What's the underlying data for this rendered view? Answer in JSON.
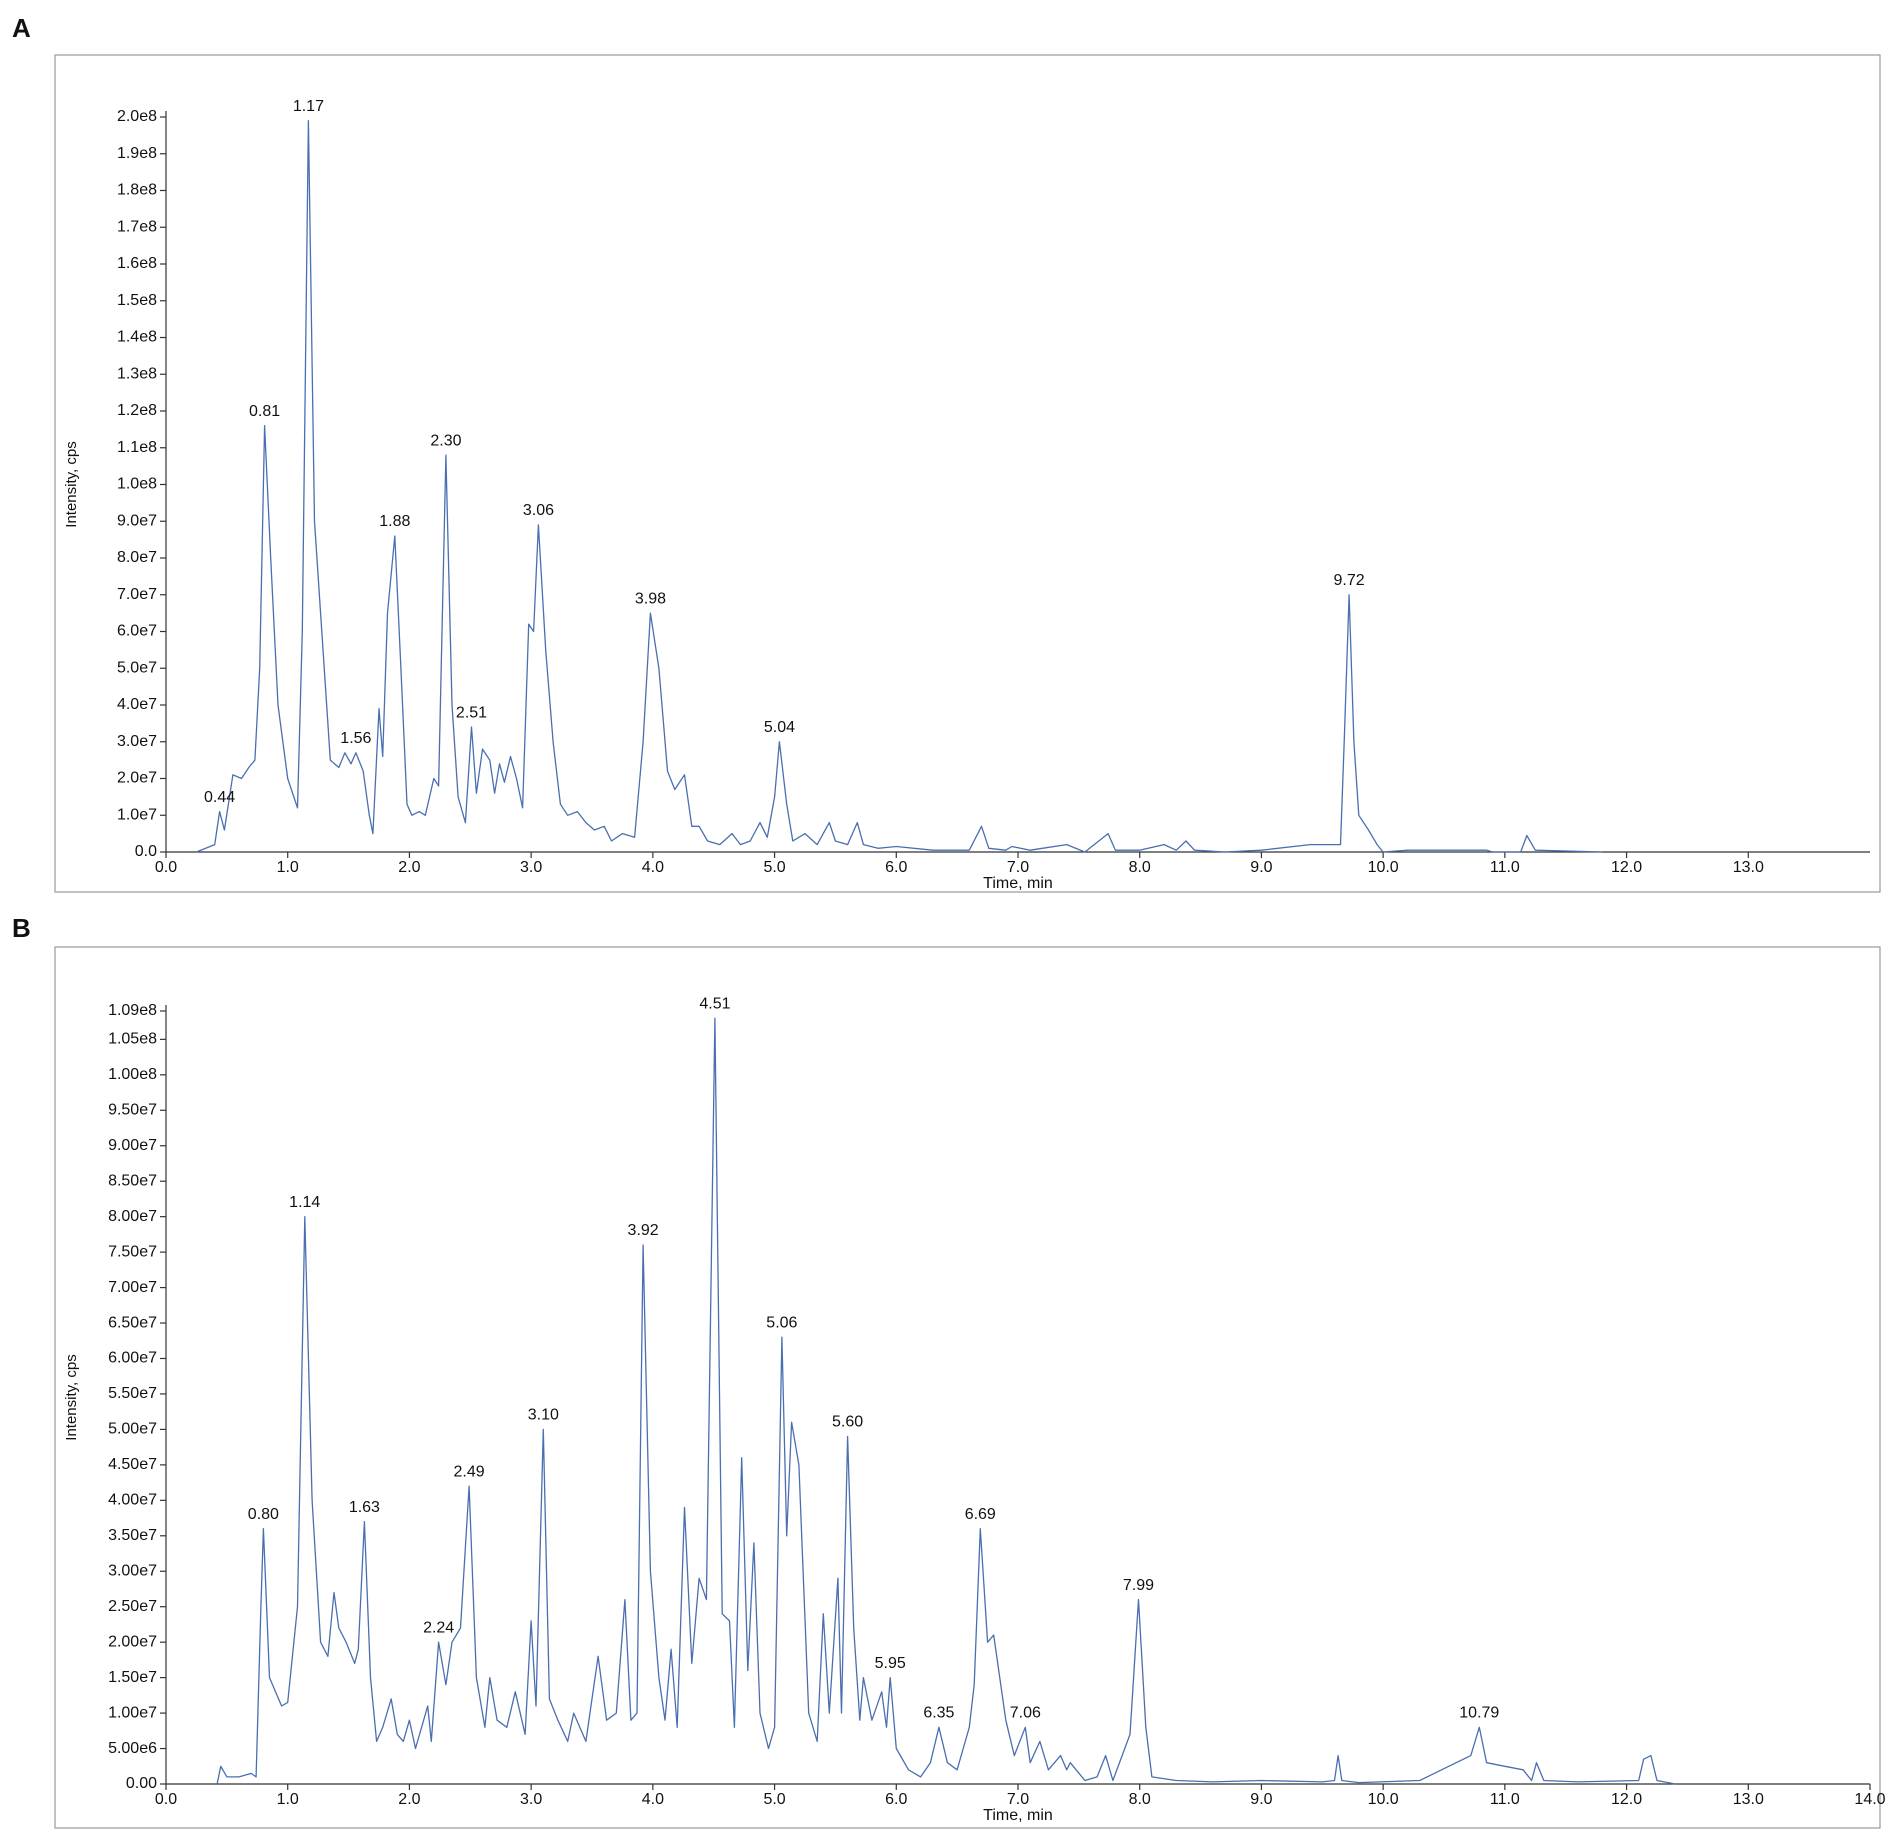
{
  "chart_data": [
    {
      "type": "line",
      "panel_label": "A",
      "x_label": "Time, min",
      "y_label": "Intensity, cps",
      "color": "#4a6fb0",
      "xlim": [
        0,
        14
      ],
      "ylim": [
        0,
        200000000.0
      ],
      "xticks": [
        {
          "value": 0,
          "label": "0.0"
        },
        {
          "value": 1,
          "label": "1.0"
        },
        {
          "value": 2,
          "label": "2.0"
        },
        {
          "value": 3,
          "label": "3.0"
        },
        {
          "value": 4,
          "label": "4.0"
        },
        {
          "value": 5,
          "label": "5.0"
        },
        {
          "value": 6,
          "label": "6.0"
        },
        {
          "value": 7,
          "label": "7.0"
        },
        {
          "value": 8,
          "label": "8.0"
        },
        {
          "value": 9,
          "label": "9.0"
        },
        {
          "value": 10,
          "label": "10.0"
        },
        {
          "value": 11,
          "label": "11.0"
        },
        {
          "value": 12,
          "label": "12.0"
        },
        {
          "value": 13,
          "label": "13.0"
        }
      ],
      "yticks": [
        {
          "value": 0,
          "label": "0.0"
        },
        {
          "value": 10000000.0,
          "label": "1.0e7"
        },
        {
          "value": 20000000.0,
          "label": "2.0e7"
        },
        {
          "value": 30000000.0,
          "label": "3.0e7"
        },
        {
          "value": 40000000.0,
          "label": "4.0e7"
        },
        {
          "value": 50000000.0,
          "label": "5.0e7"
        },
        {
          "value": 60000000.0,
          "label": "6.0e7"
        },
        {
          "value": 70000000.0,
          "label": "7.0e7"
        },
        {
          "value": 80000000.0,
          "label": "8.0e7"
        },
        {
          "value": 90000000.0,
          "label": "9.0e7"
        },
        {
          "value": 100000000.0,
          "label": "1.0e8"
        },
        {
          "value": 110000000.0,
          "label": "1.1e8"
        },
        {
          "value": 120000000.0,
          "label": "1.2e8"
        },
        {
          "value": 130000000.0,
          "label": "1.3e8"
        },
        {
          "value": 140000000.0,
          "label": "1.4e8"
        },
        {
          "value": 150000000.0,
          "label": "1.5e8"
        },
        {
          "value": 160000000.0,
          "label": "1.6e8"
        },
        {
          "value": 170000000.0,
          "label": "1.7e8"
        },
        {
          "value": 180000000.0,
          "label": "1.8e8"
        },
        {
          "value": 190000000.0,
          "label": "1.9e8"
        },
        {
          "value": 200000000.0,
          "label": "2.0e8"
        }
      ],
      "x": [
        0.25,
        0.4,
        0.44,
        0.48,
        0.55,
        0.62,
        0.68,
        0.73,
        0.77,
        0.81,
        0.86,
        0.92,
        1.0,
        1.08,
        1.12,
        1.17,
        1.22,
        1.28,
        1.35,
        1.42,
        1.47,
        1.52,
        1.56,
        1.62,
        1.67,
        1.7,
        1.75,
        1.78,
        1.82,
        1.88,
        1.93,
        1.98,
        2.02,
        2.08,
        2.13,
        2.2,
        2.24,
        2.3,
        2.35,
        2.4,
        2.46,
        2.51,
        2.55,
        2.6,
        2.66,
        2.7,
        2.74,
        2.78,
        2.83,
        2.88,
        2.93,
        2.98,
        3.02,
        3.06,
        3.12,
        3.18,
        3.24,
        3.3,
        3.38,
        3.45,
        3.52,
        3.6,
        3.66,
        3.75,
        3.85,
        3.92,
        3.98,
        4.05,
        4.12,
        4.18,
        4.26,
        4.32,
        4.38,
        4.45,
        4.55,
        4.65,
        4.72,
        4.8,
        4.88,
        4.94,
        5.0,
        5.04,
        5.1,
        5.15,
        5.25,
        5.35,
        5.45,
        5.5,
        5.6,
        5.68,
        5.73,
        5.85,
        6.0,
        6.3,
        6.6,
        6.7,
        6.76,
        6.9,
        6.95,
        7.1,
        7.2,
        7.4,
        7.55,
        7.74,
        7.8,
        8.0,
        8.2,
        8.3,
        8.38,
        8.45,
        8.7,
        9.0,
        9.4,
        9.65,
        9.68,
        9.72,
        9.76,
        9.8,
        9.88,
        9.95,
        10.0,
        10.2,
        10.85,
        10.9,
        11.13,
        11.18,
        11.25,
        11.8
      ],
      "values": [
        0,
        2000000.0,
        11000000.0,
        6000000.0,
        21000000.0,
        20000000.0,
        23000000.0,
        25000000.0,
        50000000.0,
        116000000.0,
        80000000.0,
        40000000.0,
        20000000.0,
        12000000.0,
        60000000.0,
        199000000.0,
        90000000.0,
        60000000.0,
        25000000.0,
        23000000.0,
        27000000.0,
        24000000.0,
        27000000.0,
        22000000.0,
        10000000.0,
        5000000.0,
        39000000.0,
        26000000.0,
        65000000.0,
        86000000.0,
        50000000.0,
        13000000.0,
        10000000.0,
        11000000.0,
        10000000.0,
        20000000.0,
        18000000.0,
        108000000.0,
        40000000.0,
        15000000.0,
        8000000.0,
        34000000.0,
        16000000.0,
        28000000.0,
        25000000.0,
        16000000.0,
        24000000.0,
        19000000.0,
        26000000.0,
        20000000.0,
        12000000.0,
        62000000.0,
        60000000.0,
        89000000.0,
        55000000.0,
        30000000.0,
        13000000.0,
        10000000.0,
        11000000.0,
        8000000.0,
        6000000.0,
        7000000.0,
        3000000.0,
        5000000.0,
        4000000.0,
        30000000.0,
        65000000.0,
        50000000.0,
        22000000.0,
        17000000.0,
        21000000.0,
        7000000.0,
        7000000.0,
        3000000.0,
        2000000.0,
        5000000.0,
        2000000.0,
        3000000.0,
        8000000.0,
        4000000.0,
        15000000.0,
        30000000.0,
        13000000.0,
        3000000.0,
        5000000.0,
        2000000.0,
        8000000.0,
        3000000.0,
        2000000.0,
        8000000.0,
        2000000.0,
        1000000.0,
        1500000.0,
        500000.0,
        500000.0,
        7000000.0,
        1000000.0,
        500000.0,
        1500000.0,
        500000.0,
        1000000.0,
        2000000.0,
        0,
        5000000.0,
        500000.0,
        500000.0,
        2000000.0,
        500000.0,
        3000000.0,
        500000.0,
        0,
        500000.0,
        2000000.0,
        2000000.0,
        30000000.0,
        70000000.0,
        30000000.0,
        10000000.0,
        6000000.0,
        2000000.0,
        0,
        500000.0,
        500000.0,
        0,
        0,
        4500000.0,
        500000.0,
        0
      ],
      "peak_labels": [
        {
          "x": 0.44,
          "y": 11000000.0,
          "label": "0.44"
        },
        {
          "x": 0.81,
          "y": 116000000.0,
          "label": "0.81"
        },
        {
          "x": 1.17,
          "y": 199000000.0,
          "label": "1.17"
        },
        {
          "x": 1.56,
          "y": 27000000.0,
          "label": "1.56"
        },
        {
          "x": 1.88,
          "y": 86000000.0,
          "label": "1.88"
        },
        {
          "x": 2.3,
          "y": 108000000.0,
          "label": "2.30"
        },
        {
          "x": 2.51,
          "y": 34000000.0,
          "label": "2.51"
        },
        {
          "x": 3.06,
          "y": 89000000.0,
          "label": "3.06"
        },
        {
          "x": 3.98,
          "y": 65000000.0,
          "label": "3.98"
        },
        {
          "x": 5.04,
          "y": 30000000.0,
          "label": "5.04"
        },
        {
          "x": 9.72,
          "y": 70000000.0,
          "label": "9.72"
        }
      ]
    },
    {
      "type": "line",
      "panel_label": "B",
      "x_label": "Time, min",
      "y_label": "Intensity, cps",
      "color": "#4a6fb0",
      "xlim": [
        0,
        14
      ],
      "ylim": [
        0,
        109000000.0
      ],
      "xticks": [
        {
          "value": 0,
          "label": "0.0"
        },
        {
          "value": 1,
          "label": "1.0"
        },
        {
          "value": 2,
          "label": "2.0"
        },
        {
          "value": 3,
          "label": "3.0"
        },
        {
          "value": 4,
          "label": "4.0"
        },
        {
          "value": 5,
          "label": "5.0"
        },
        {
          "value": 6,
          "label": "6.0"
        },
        {
          "value": 7,
          "label": "7.0"
        },
        {
          "value": 8,
          "label": "8.0"
        },
        {
          "value": 9,
          "label": "9.0"
        },
        {
          "value": 10,
          "label": "10.0"
        },
        {
          "value": 11,
          "label": "11.0"
        },
        {
          "value": 12,
          "label": "12.0"
        },
        {
          "value": 13,
          "label": "13.0"
        },
        {
          "value": 14,
          "label": "14.0"
        }
      ],
      "yticks": [
        {
          "value": 0,
          "label": "0.00"
        },
        {
          "value": 5000000.0,
          "label": "5.00e6"
        },
        {
          "value": 10000000.0,
          "label": "1.00e7"
        },
        {
          "value": 15000000.0,
          "label": "1.50e7"
        },
        {
          "value": 20000000.0,
          "label": "2.00e7"
        },
        {
          "value": 25000000.0,
          "label": "2.50e7"
        },
        {
          "value": 30000000.0,
          "label": "3.00e7"
        },
        {
          "value": 35000000.0,
          "label": "3.50e7"
        },
        {
          "value": 40000000.0,
          "label": "4.00e7"
        },
        {
          "value": 45000000.0,
          "label": "4.50e7"
        },
        {
          "value": 50000000.0,
          "label": "5.00e7"
        },
        {
          "value": 55000000.0,
          "label": "5.50e7"
        },
        {
          "value": 60000000.0,
          "label": "6.00e7"
        },
        {
          "value": 65000000.0,
          "label": "6.50e7"
        },
        {
          "value": 70000000.0,
          "label": "7.00e7"
        },
        {
          "value": 75000000.0,
          "label": "7.50e7"
        },
        {
          "value": 80000000.0,
          "label": "8.00e7"
        },
        {
          "value": 85000000.0,
          "label": "8.50e7"
        },
        {
          "value": 90000000.0,
          "label": "9.00e7"
        },
        {
          "value": 95000000.0,
          "label": "9.50e7"
        },
        {
          "value": 100000000.0,
          "label": "1.00e8"
        },
        {
          "value": 105000000.0,
          "label": "1.05e8"
        },
        {
          "value": 109000000.0,
          "label": "1.09e8"
        }
      ],
      "x": [
        0.42,
        0.45,
        0.5,
        0.6,
        0.7,
        0.74,
        0.78,
        0.8,
        0.85,
        0.95,
        1.0,
        1.08,
        1.14,
        1.2,
        1.27,
        1.33,
        1.38,
        1.42,
        1.48,
        1.55,
        1.58,
        1.63,
        1.68,
        1.73,
        1.78,
        1.85,
        1.9,
        1.95,
        2.0,
        2.05,
        2.1,
        2.15,
        2.18,
        2.24,
        2.3,
        2.35,
        2.42,
        2.49,
        2.55,
        2.62,
        2.66,
        2.72,
        2.8,
        2.87,
        2.95,
        3.0,
        3.04,
        3.1,
        3.15,
        3.22,
        3.3,
        3.35,
        3.45,
        3.55,
        3.62,
        3.7,
        3.77,
        3.82,
        3.87,
        3.92,
        3.98,
        4.05,
        4.1,
        4.15,
        4.2,
        4.26,
        4.32,
        4.38,
        4.44,
        4.51,
        4.57,
        4.63,
        4.67,
        4.73,
        4.78,
        4.83,
        4.88,
        4.95,
        5.0,
        5.06,
        5.1,
        5.14,
        5.2,
        5.28,
        5.35,
        5.4,
        5.45,
        5.52,
        5.55,
        5.6,
        5.65,
        5.7,
        5.73,
        5.8,
        5.88,
        5.92,
        5.95,
        6.0,
        6.1,
        6.2,
        6.28,
        6.35,
        6.42,
        6.5,
        6.6,
        6.64,
        6.69,
        6.75,
        6.8,
        6.9,
        6.97,
        7.06,
        7.1,
        7.18,
        7.25,
        7.35,
        7.4,
        7.43,
        7.55,
        7.65,
        7.72,
        7.78,
        7.92,
        7.99,
        8.05,
        8.1,
        8.3,
        8.6,
        9.0,
        9.5,
        9.6,
        9.63,
        9.66,
        9.8,
        10.3,
        10.6,
        10.72,
        10.79,
        10.85,
        11.0,
        11.15,
        11.22,
        11.26,
        11.32,
        11.6,
        12.1,
        12.14,
        12.2,
        12.25,
        12.4
      ],
      "values": [
        0,
        2500000.0,
        1000000.0,
        1000000.0,
        1500000.0,
        1000000.0,
        25000000.0,
        36000000.0,
        15000000.0,
        11000000.0,
        11500000.0,
        25000000.0,
        80000000.0,
        40000000.0,
        20000000.0,
        18000000.0,
        27000000.0,
        22000000.0,
        20000000.0,
        17000000.0,
        19000000.0,
        37000000.0,
        15000000.0,
        6000000.0,
        8000000.0,
        12000000.0,
        7000000.0,
        6000000.0,
        9000000.0,
        5000000.0,
        8000000.0,
        11000000.0,
        6000000.0,
        20000000.0,
        14000000.0,
        20000000.0,
        22000000.0,
        42000000.0,
        15000000.0,
        8000000.0,
        15000000.0,
        9000000.0,
        8000000.0,
        13000000.0,
        7000000.0,
        23000000.0,
        11000000.0,
        50000000.0,
        12000000.0,
        9000000.0,
        6000000.0,
        10000000.0,
        6000000.0,
        18000000.0,
        9000000.0,
        10000000.0,
        26000000.0,
        9000000.0,
        10000000.0,
        76000000.0,
        30000000.0,
        15000000.0,
        9000000.0,
        19000000.0,
        8000000.0,
        39000000.0,
        17000000.0,
        29000000.0,
        26000000.0,
        108000000.0,
        24000000.0,
        23000000.0,
        8000000.0,
        46000000.0,
        16000000.0,
        34000000.0,
        10000000.0,
        5000000.0,
        8000000.0,
        63000000.0,
        35000000.0,
        51000000.0,
        45000000.0,
        10000000.0,
        6000000.0,
        24000000.0,
        10000000.0,
        29000000.0,
        10000000.0,
        49000000.0,
        22000000.0,
        9000000.0,
        15000000.0,
        9000000.0,
        13000000.0,
        8000000.0,
        15000000.0,
        5000000.0,
        2000000.0,
        1000000.0,
        3000000.0,
        8000000.0,
        3000000.0,
        2000000.0,
        8000000.0,
        14000000.0,
        36000000.0,
        20000000.0,
        21000000.0,
        9000000.0,
        4000000.0,
        8000000.0,
        3000000.0,
        6000000.0,
        2000000.0,
        4000000.0,
        2000000.0,
        3000000.0,
        500000.0,
        1000000.0,
        4000000.0,
        500000.0,
        7000000.0,
        26000000.0,
        8000000.0,
        1000000.0,
        500000.0,
        300000.0,
        500000.0,
        300000.0,
        500000.0,
        4000000.0,
        500000.0,
        200000.0,
        500000.0,
        3000000.0,
        4000000.0,
        8000000.0,
        3000000.0,
        2500000.0,
        2000000.0,
        500000.0,
        3000000.0,
        500000.0,
        300000.0,
        500000.0,
        3500000.0,
        4000000.0,
        500000.0,
        0
      ],
      "peak_labels": [
        {
          "x": 0.8,
          "y": 36000000.0,
          "label": "0.80"
        },
        {
          "x": 1.14,
          "y": 80000000.0,
          "label": "1.14"
        },
        {
          "x": 1.63,
          "y": 37000000.0,
          "label": "1.63"
        },
        {
          "x": 2.24,
          "y": 20000000.0,
          "label": "2.24"
        },
        {
          "x": 2.49,
          "y": 42000000.0,
          "label": "2.49"
        },
        {
          "x": 3.1,
          "y": 50000000.0,
          "label": "3.10"
        },
        {
          "x": 3.92,
          "y": 76000000.0,
          "label": "3.92"
        },
        {
          "x": 4.51,
          "y": 108000000.0,
          "label": "4.51"
        },
        {
          "x": 5.06,
          "y": 63000000.0,
          "label": "5.06"
        },
        {
          "x": 5.6,
          "y": 49000000.0,
          "label": "5.60"
        },
        {
          "x": 5.95,
          "y": 15000000.0,
          "label": "5.95"
        },
        {
          "x": 6.35,
          "y": 8000000.0,
          "label": "6.35"
        },
        {
          "x": 6.69,
          "y": 36000000.0,
          "label": "6.69"
        },
        {
          "x": 7.06,
          "y": 8000000.0,
          "label": "7.06"
        },
        {
          "x": 7.99,
          "y": 26000000.0,
          "label": "7.99"
        },
        {
          "x": 10.79,
          "y": 8000000.0,
          "label": "10.79"
        }
      ]
    }
  ]
}
